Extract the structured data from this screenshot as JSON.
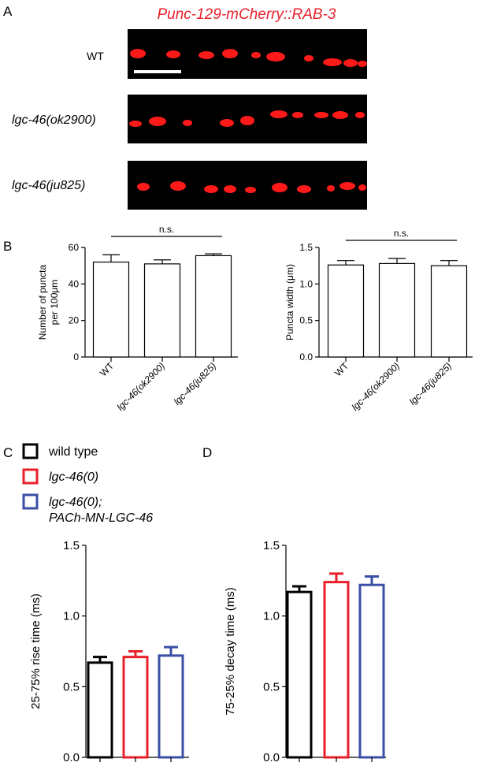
{
  "panel_a": {
    "letter": "A",
    "title": "Punc-129-mCherry::RAB-3",
    "rows": [
      {
        "label": "WT",
        "italic": false
      },
      {
        "label": "lgc-46(ok2900)",
        "italic": true
      },
      {
        "label": "lgc-46(ju825)",
        "italic": true
      }
    ],
    "colors": {
      "background": "#000000",
      "puncta": "#ff1a1a",
      "scale_bar": "#ffffff"
    }
  },
  "panel_b_letter": "B",
  "panel_c_letter": "C",
  "panel_d_letter": "D",
  "legend": {
    "items": [
      {
        "label": "wild type",
        "label2": "",
        "color": "#000000"
      },
      {
        "label": "lgc-46(0)",
        "label2": "",
        "color": "#e8202a"
      },
      {
        "label": "lgc-46(0);",
        "label2": "PACh-MN-LGC-46",
        "color": "#3a4fa5"
      }
    ]
  },
  "chart_data": [
    {
      "id": "b-left",
      "type": "bar",
      "categories": [
        "WT",
        "lgc-46(ok2900)",
        "lgc-46(ju825)"
      ],
      "values": [
        52,
        51,
        55.5
      ],
      "errors": [
        4,
        2.2,
        1
      ],
      "ylabel": "Number of puncta",
      "ylabel2": "per 100μm",
      "ylim": [
        0,
        60
      ],
      "yticks": [
        0,
        20,
        40,
        60
      ],
      "ytick_labels": [
        "0",
        "20",
        "40",
        "60"
      ],
      "bar_colors": [
        "#000000",
        "#000000",
        "#000000"
      ],
      "annotation": "n.s."
    },
    {
      "id": "b-right",
      "type": "bar",
      "categories": [
        "WT",
        "lgc-46(ok2900)",
        "lgc-46(ju825)"
      ],
      "values": [
        1.26,
        1.28,
        1.25
      ],
      "errors": [
        0.06,
        0.07,
        0.07
      ],
      "ylabel": "Puncta width (μm)",
      "ylabel2": "",
      "ylim": [
        0,
        1.5
      ],
      "yticks": [
        0,
        0.5,
        1.0,
        1.5
      ],
      "ytick_labels": [
        "0.0",
        "0.5",
        "1.0",
        "1.5"
      ],
      "bar_colors": [
        "#000000",
        "#000000",
        "#000000"
      ],
      "annotation": "n.s."
    },
    {
      "id": "c",
      "type": "bar",
      "categories": [
        "wild type",
        "lgc-46(0)",
        "lgc-46(0); PACh-MN-LGC-46"
      ],
      "values": [
        0.67,
        0.71,
        0.72
      ],
      "errors": [
        0.04,
        0.04,
        0.06
      ],
      "ylabel": "25-75% rise time (ms)",
      "ylabel2": "",
      "ylim": [
        0,
        1.5
      ],
      "yticks": [
        0,
        0.5,
        1.0,
        1.5
      ],
      "ytick_labels": [
        "0.0",
        "0.5",
        "1.0",
        "1.5"
      ],
      "bar_colors": [
        "#000000",
        "#e8202a",
        "#3a4fa5"
      ],
      "annotation": ""
    },
    {
      "id": "d",
      "type": "bar",
      "categories": [
        "wild type",
        "lgc-46(0)",
        "lgc-46(0); PACh-MN-LGC-46"
      ],
      "values": [
        1.17,
        1.24,
        1.22
      ],
      "errors": [
        0.04,
        0.06,
        0.06
      ],
      "ylabel": "75-25% decay time (ms)",
      "ylabel2": "",
      "ylim": [
        0,
        1.5
      ],
      "yticks": [
        0,
        0.5,
        1.0,
        1.5
      ],
      "ytick_labels": [
        "0.0",
        "0.5",
        "1.0",
        "1.5"
      ],
      "bar_colors": [
        "#000000",
        "#e8202a",
        "#3a4fa5"
      ],
      "annotation": ""
    }
  ]
}
